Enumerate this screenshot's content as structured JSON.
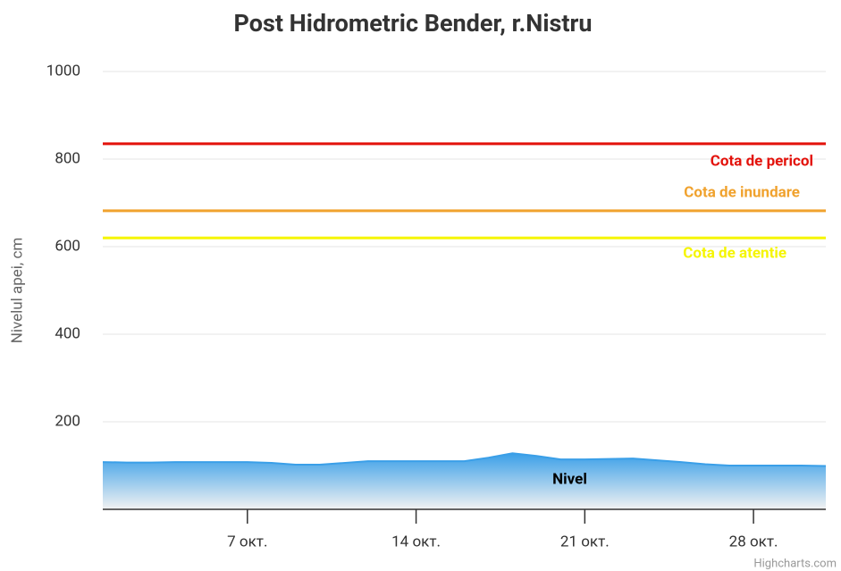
{
  "chart_data": {
    "type": "area",
    "title": "Post Hidrometric Bender, r.Nistru",
    "y_axis_label": "Nivelul apei, cm",
    "x": [
      1,
      2,
      3,
      4,
      5,
      6,
      7,
      8,
      9,
      10,
      11,
      12,
      13,
      14,
      15,
      16,
      17,
      18,
      19,
      20,
      21,
      22,
      23,
      24,
      25,
      26,
      27,
      28,
      29,
      30,
      31
    ],
    "xlim": [
      1,
      31
    ],
    "xticks": [
      {
        "value": 7,
        "label": "7 окт."
      },
      {
        "value": 14,
        "label": "14 окт."
      },
      {
        "value": 21,
        "label": "21 окт."
      },
      {
        "value": 28,
        "label": "28 окт."
      }
    ],
    "ylim": [
      0,
      1000
    ],
    "yticks": [
      200,
      400,
      600,
      800,
      1000
    ],
    "grid": true,
    "series": [
      {
        "name": "Nivel",
        "color": "#3a9fe8",
        "values": [
          108,
          107,
          107,
          108,
          108,
          108,
          108,
          106,
          102,
          102,
          106,
          110,
          110,
          110,
          110,
          110,
          118,
          128,
          122,
          114,
          114,
          115,
          116,
          112,
          108,
          103,
          100,
          100,
          100,
          100,
          99
        ]
      }
    ],
    "plot_lines": [
      {
        "label": "Cota de pericol",
        "value": 835,
        "color": "#e3120b"
      },
      {
        "label": "Cota de inundare",
        "value": 682,
        "color": "#f0a22e"
      },
      {
        "label": "Cota de atentie",
        "value": 620,
        "color": "#f5f500"
      }
    ],
    "credits": "Highcharts.com"
  }
}
